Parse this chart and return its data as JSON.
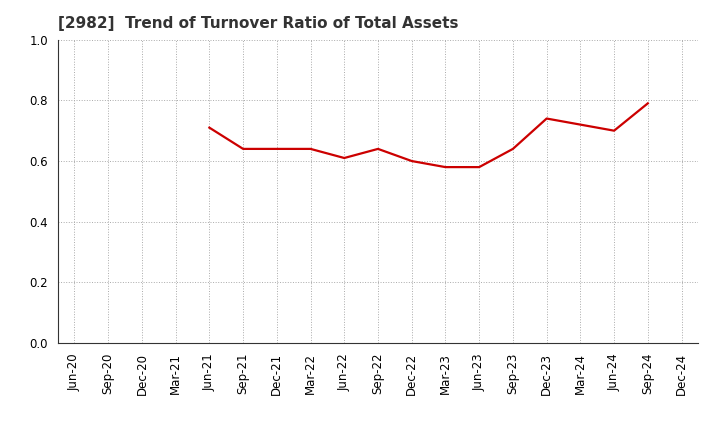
{
  "title": "[2982]  Trend of Turnover Ratio of Total Assets",
  "x_labels": [
    "Jun-20",
    "Sep-20",
    "Dec-20",
    "Mar-21",
    "Jun-21",
    "Sep-21",
    "Dec-21",
    "Mar-22",
    "Jun-22",
    "Sep-22",
    "Dec-22",
    "Mar-23",
    "Jun-23",
    "Sep-23",
    "Dec-23",
    "Mar-24",
    "Jun-24",
    "Sep-24",
    "Dec-24"
  ],
  "y_values": [
    null,
    null,
    null,
    null,
    0.71,
    0.64,
    0.64,
    0.64,
    0.61,
    0.64,
    0.6,
    0.58,
    0.58,
    0.64,
    0.74,
    0.72,
    0.7,
    0.79,
    null
  ],
  "line_color": "#cc0000",
  "line_width": 1.6,
  "ylim": [
    0.0,
    1.0
  ],
  "yticks": [
    0.0,
    0.2,
    0.4,
    0.6,
    0.8,
    1.0
  ],
  "background_color": "#ffffff",
  "grid_color": "#aaaaaa",
  "title_fontsize": 11,
  "tick_fontsize": 8.5
}
